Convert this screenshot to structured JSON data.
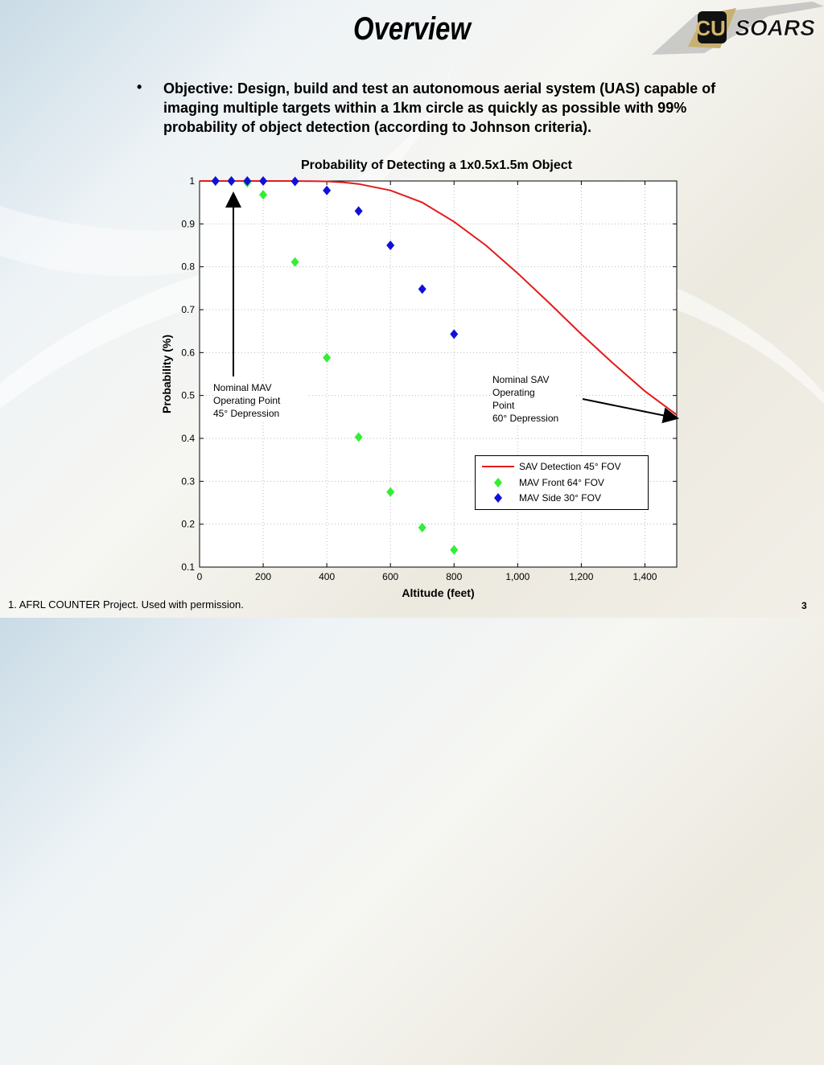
{
  "slide": {
    "title": "Overview",
    "logo_text": "SOARS",
    "bullet_marker": "•",
    "bullet": "Objective: Design, build and test an autonomous aerial system (UAS) capable of imaging multiple targets within a 1km circle as quickly as possible with 99% probability of object detection (according to Johnson criteria).",
    "footnote": "1. AFRL COUNTER Project. Used with permission.",
    "page_number": "3"
  },
  "chart_data": {
    "type": "scatter",
    "title": "Probability of Detecting a 1x0.5x1.5m Object",
    "xlabel": "Altitude (feet)",
    "ylabel": "Probability (%)",
    "xlim": [
      0,
      1500
    ],
    "ylim": [
      0.1,
      1
    ],
    "x_ticks": [
      0,
      200,
      400,
      600,
      800,
      1000,
      1200,
      1400
    ],
    "x_tick_labels": [
      "0",
      "200",
      "400",
      "600",
      "800",
      "1,000",
      "1,200",
      "1,400"
    ],
    "y_ticks": [
      0.1,
      0.2,
      0.3,
      0.4,
      0.5,
      0.6,
      0.7,
      0.8,
      0.9,
      1
    ],
    "y_tick_labels": [
      "0.1",
      "0.2",
      "0.3",
      "0.4",
      "0.5",
      "0.6",
      "0.7",
      "0.8",
      "0.9",
      "1"
    ],
    "grid": true,
    "legend_position": "lower-right",
    "series": [
      {
        "name": "SAV Detection 45° FOV",
        "style": "line",
        "color": "#e31a1c",
        "x": [
          0,
          100,
          200,
          300,
          400,
          450,
          500,
          600,
          700,
          800,
          900,
          1000,
          1100,
          1200,
          1300,
          1400,
          1500
        ],
        "y": [
          1.0,
          1.0,
          1.0,
          1.0,
          0.999,
          0.997,
          0.993,
          0.978,
          0.95,
          0.905,
          0.85,
          0.785,
          0.715,
          0.643,
          0.575,
          0.51,
          0.455
        ]
      },
      {
        "name": "MAV Front 64° FOV",
        "style": "diamond",
        "color": "#33ee33",
        "x": [
          50,
          100,
          150,
          200,
          300,
          400,
          500,
          600,
          700,
          800
        ],
        "y": [
          1.0,
          1.0,
          0.996,
          0.968,
          0.811,
          0.588,
          0.403,
          0.275,
          0.192,
          0.14
        ]
      },
      {
        "name": "MAV Side 30° FOV",
        "style": "diamond",
        "color": "#1010d8",
        "x": [
          50,
          100,
          150,
          200,
          300,
          400,
          500,
          600,
          700,
          800
        ],
        "y": [
          1.0,
          1.0,
          1.0,
          1.0,
          0.999,
          0.978,
          0.93,
          0.85,
          0.748,
          0.643
        ]
      }
    ],
    "annotations": [
      {
        "text_lines": [
          "Nominal MAV",
          "Operating Point",
          "45° Depression"
        ]
      },
      {
        "text_lines": [
          "Nominal SAV",
          "Operating",
          "Point",
          "60° Depression"
        ]
      }
    ]
  }
}
